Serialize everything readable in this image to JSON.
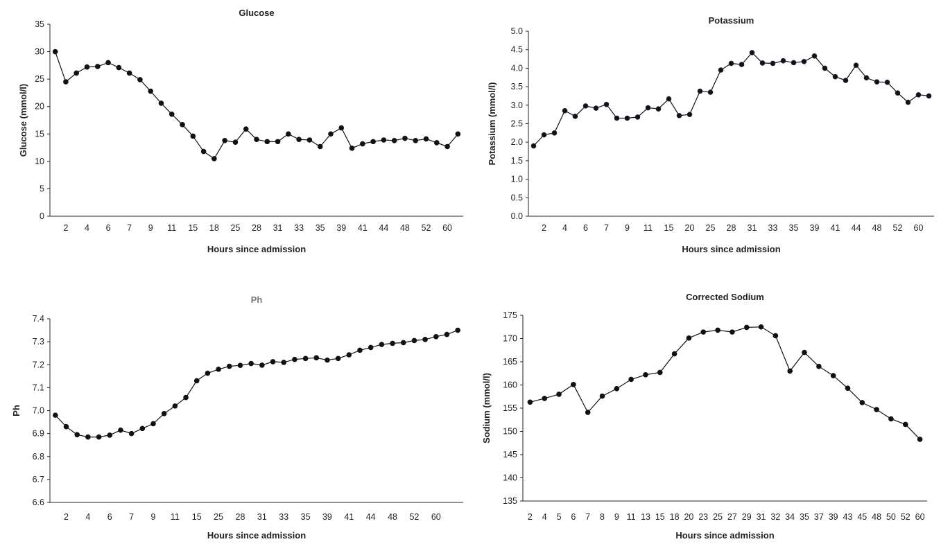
{
  "chart_data": [
    {
      "type": "line",
      "title": "Glucose",
      "xlabel": "Hours since admission",
      "ylabel": "Glucose (mmol/l)",
      "ylim": [
        0,
        35
      ],
      "yticks": [
        "0",
        "5",
        "10",
        "15",
        "20",
        "25",
        "30",
        "35"
      ],
      "xticklabels": [
        "2",
        "4",
        "6",
        "7",
        "9",
        "11",
        "15",
        "18",
        "25",
        "28",
        "31",
        "33",
        "35",
        "39",
        "41",
        "44",
        "48",
        "52",
        "60"
      ],
      "label_start_index": 1,
      "label_step": 2,
      "values": [
        30.0,
        24.5,
        26.1,
        27.2,
        27.3,
        28.0,
        27.1,
        26.1,
        24.9,
        22.8,
        20.6,
        18.6,
        16.7,
        14.6,
        11.8,
        10.5,
        13.8,
        13.5,
        15.9,
        14.0,
        13.6,
        13.6,
        15.0,
        14.0,
        13.9,
        12.7,
        15.0,
        16.1,
        12.4,
        13.2,
        13.6,
        13.9,
        13.8,
        14.2,
        13.8,
        14.1,
        13.4,
        12.7,
        15.0
      ],
      "grid": false,
      "legend": false
    },
    {
      "type": "line",
      "title": "Potassium",
      "xlabel": "Hours since admission",
      "ylabel": "Potassium (mmol/l)",
      "ylim": [
        0.0,
        5.0
      ],
      "yticks": [
        "0.0",
        "0.5",
        "1.0",
        "1.5",
        "2.0",
        "2.5",
        "3.0",
        "3.5",
        "4.0",
        "4.5",
        "5.0"
      ],
      "xticklabels": [
        "2",
        "4",
        "6",
        "7",
        "9",
        "11",
        "15",
        "20",
        "25",
        "28",
        "31",
        "33",
        "35",
        "39",
        "41",
        "44",
        "48",
        "52",
        "60"
      ],
      "label_start_index": 1,
      "label_step": 2,
      "values": [
        1.9,
        2.2,
        2.25,
        2.85,
        2.7,
        2.98,
        2.92,
        3.02,
        2.65,
        2.65,
        2.68,
        2.93,
        2.9,
        3.17,
        2.72,
        2.75,
        3.38,
        3.35,
        3.95,
        4.13,
        4.1,
        4.42,
        4.14,
        4.13,
        4.2,
        4.15,
        4.18,
        4.33,
        4.0,
        3.77,
        3.67,
        4.08,
        3.74,
        3.63,
        3.62,
        3.33,
        3.08,
        3.28,
        3.25
      ],
      "grid": false,
      "legend": false
    },
    {
      "type": "line",
      "title": "Ph",
      "xlabel": "Hours since admission",
      "ylabel": "Ph",
      "ylim": [
        6.6,
        7.4
      ],
      "yticks": [
        "6.6",
        "6.7",
        "6.8",
        "6.9",
        "7.0",
        "7.1",
        "7.2",
        "7.3",
        "7.4"
      ],
      "xticklabels": [
        "2",
        "4",
        "6",
        "7",
        "9",
        "11",
        "15",
        "25",
        "28",
        "31",
        "33",
        "35",
        "39",
        "41",
        "44",
        "48",
        "52",
        "60"
      ],
      "label_start_index": 1,
      "label_step": 2,
      "values": [
        6.98,
        6.93,
        6.895,
        6.885,
        6.885,
        6.893,
        6.915,
        6.9,
        6.922,
        6.943,
        6.987,
        7.02,
        7.057,
        7.13,
        7.163,
        7.18,
        7.193,
        7.197,
        7.205,
        7.198,
        7.213,
        7.21,
        7.223,
        7.227,
        7.23,
        7.22,
        7.227,
        7.243,
        7.263,
        7.275,
        7.288,
        7.293,
        7.296,
        7.305,
        7.31,
        7.322,
        7.332,
        7.35
      ],
      "grid": false,
      "legend": false
    },
    {
      "type": "line",
      "title": "Corrected Sodium",
      "xlabel": "Hours since admission",
      "ylabel": "Sodium (mmol/l)",
      "ylim": [
        135,
        175
      ],
      "yticks": [
        "135",
        "140",
        "145",
        "150",
        "155",
        "160",
        "165",
        "170",
        "175"
      ],
      "xticklabels": [
        "2",
        "4",
        "5",
        "6",
        "7",
        "8",
        "9",
        "11",
        "13",
        "15",
        "18",
        "20",
        "23",
        "25",
        "27",
        "29",
        "31",
        "32",
        "34",
        "35",
        "37",
        "39",
        "43",
        "45",
        "48",
        "50",
        "52",
        "60"
      ],
      "label_start_index": 0,
      "label_step": 1,
      "values": [
        156.3,
        157.1,
        158.0,
        160.1,
        154.1,
        157.6,
        159.2,
        161.2,
        162.2,
        162.7,
        166.7,
        170.1,
        171.4,
        171.8,
        171.4,
        172.4,
        172.5,
        170.6,
        163.0,
        167.0,
        164.0,
        162.0,
        159.3,
        156.2,
        154.7,
        152.7,
        151.5,
        148.3
      ],
      "grid": false,
      "legend": false
    }
  ]
}
